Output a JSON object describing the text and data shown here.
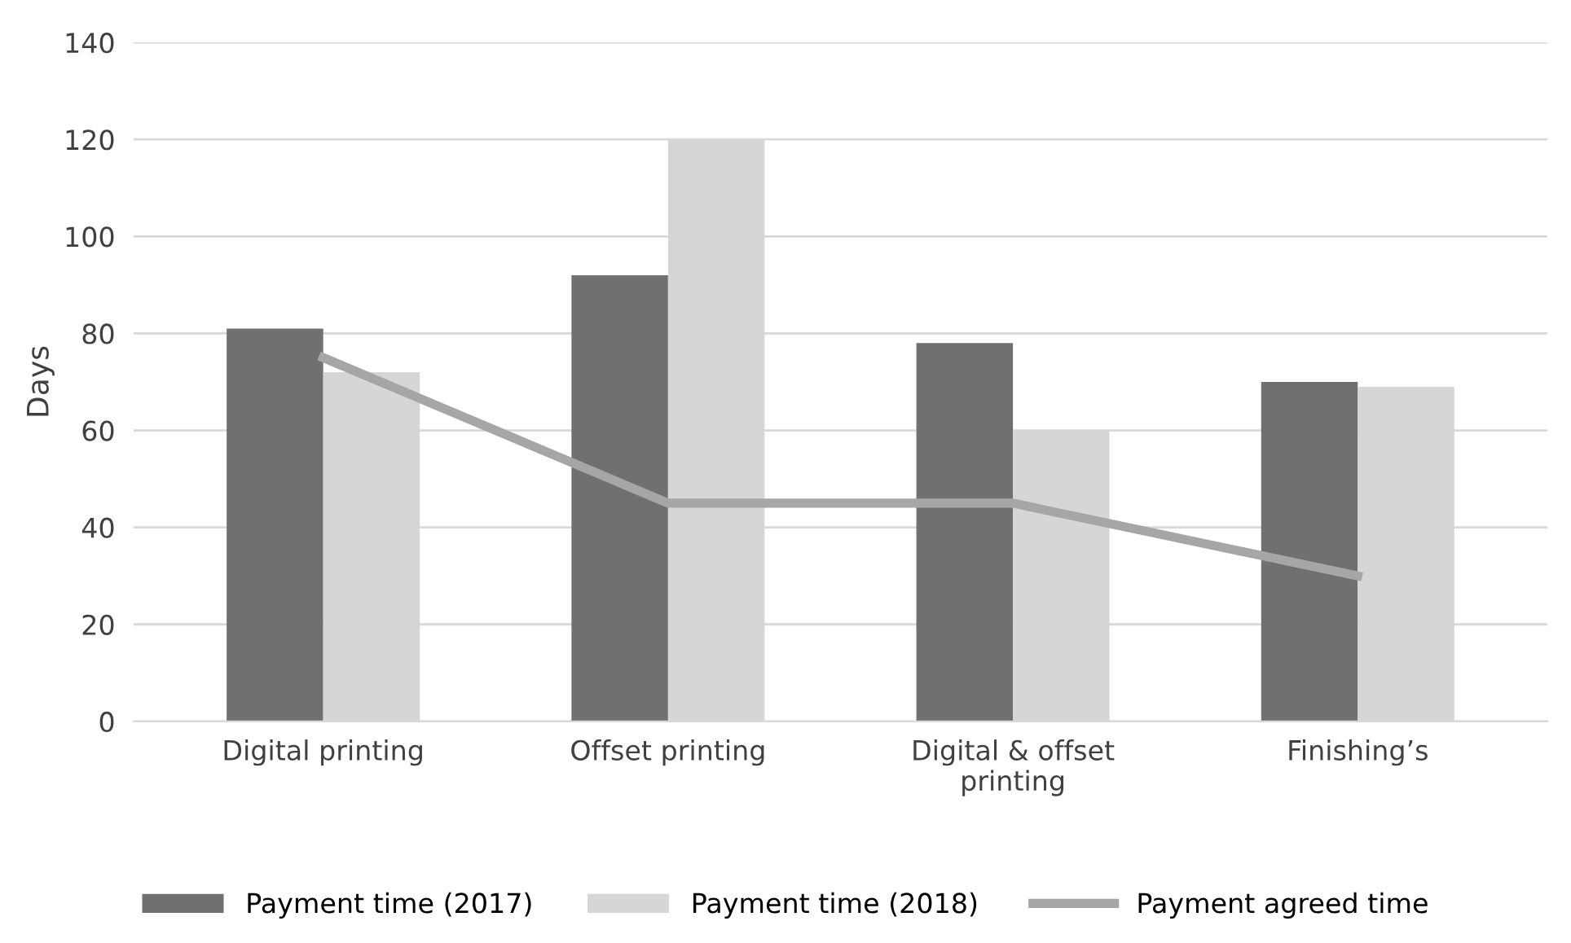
{
  "chart_data": {
    "type": "bar",
    "ylabel": "Days",
    "categories": [
      "Digital printing",
      "Offset printing",
      "Digital & offset\nprinting",
      "Finishing’s"
    ],
    "series": [
      {
        "name": "Payment time (2017)",
        "color": "#707070",
        "values": [
          81,
          92,
          78,
          70
        ]
      },
      {
        "name": "Payment time (2018)",
        "color": "#d6d6d6",
        "values": [
          72,
          120,
          60,
          69
        ]
      },
      {
        "name": "Payment agreed time",
        "type": "line",
        "color": "#a6a6a6",
        "values": [
          75,
          45,
          45,
          30
        ]
      }
    ],
    "ylim": [
      0,
      140
    ],
    "yticks": [
      0,
      20,
      40,
      60,
      80,
      100,
      120,
      140
    ],
    "grid": "y",
    "legend": "bottom",
    "marker": "none",
    "line_style": "solid"
  }
}
